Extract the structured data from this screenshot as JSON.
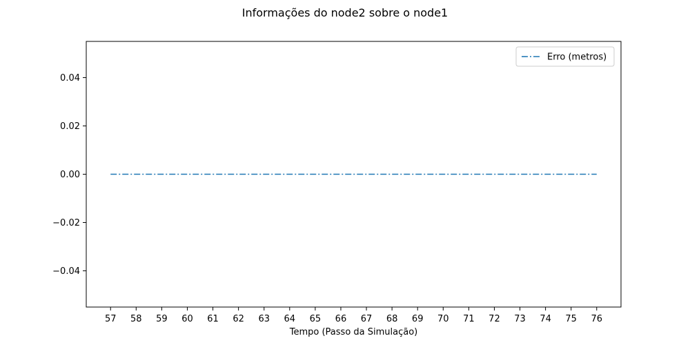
{
  "chart_data": {
    "type": "line",
    "title": "Informações do node2 sobre o node1",
    "xlabel": "Tempo (Passo da Simulação)",
    "ylabel": "",
    "x": [
      57,
      58,
      59,
      60,
      61,
      62,
      63,
      64,
      65,
      66,
      67,
      68,
      69,
      70,
      71,
      72,
      73,
      74,
      75,
      76
    ],
    "series": [
      {
        "name": "Erro (metros)",
        "values": [
          0,
          0,
          0,
          0,
          0,
          0,
          0,
          0,
          0,
          0,
          0,
          0,
          0,
          0,
          0,
          0,
          0,
          0,
          0,
          0
        ],
        "color": "#1f77b4",
        "line_style": "dash-dot"
      }
    ],
    "xlim": [
      56.05,
      76.95
    ],
    "ylim": [
      -0.055,
      0.055
    ],
    "xticks": [
      57,
      58,
      59,
      60,
      61,
      62,
      63,
      64,
      65,
      66,
      67,
      68,
      69,
      70,
      71,
      72,
      73,
      74,
      75,
      76
    ],
    "xtick_labels": [
      "57",
      "58",
      "59",
      "60",
      "61",
      "62",
      "63",
      "64",
      "65",
      "66",
      "67",
      "68",
      "69",
      "70",
      "71",
      "72",
      "73",
      "74",
      "75",
      "76"
    ],
    "yticks": [
      -0.04,
      -0.02,
      0.0,
      0.02,
      0.04
    ],
    "ytick_labels": [
      "−0.04",
      "−0.02",
      "0.00",
      "0.02",
      "0.04"
    ],
    "grid": false,
    "legend_position": "top-right"
  }
}
